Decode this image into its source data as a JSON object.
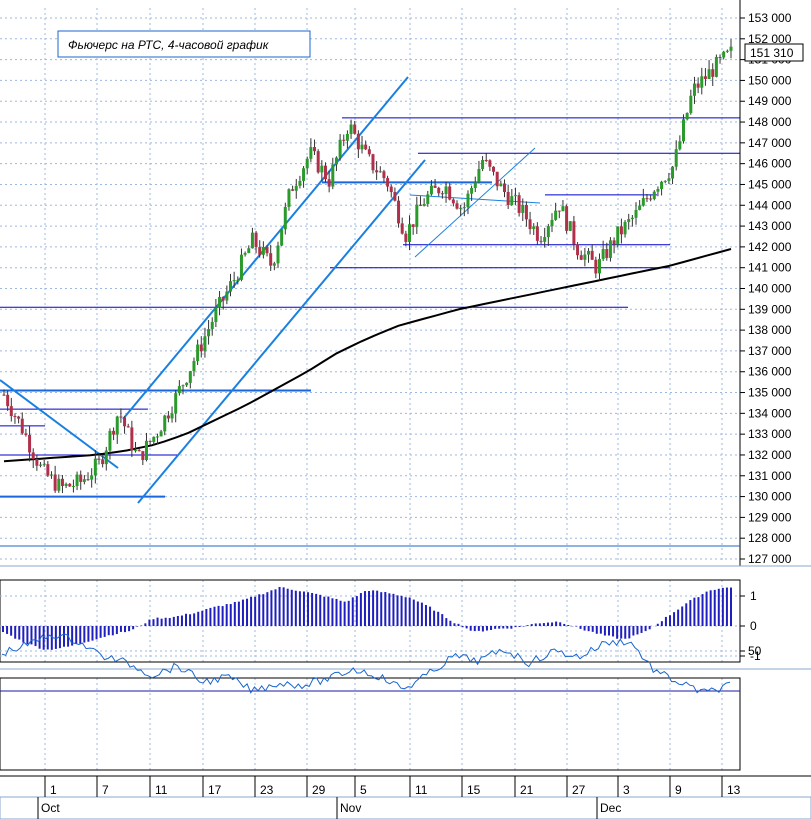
{
  "chart_data": [
    {
      "type": "candlestick",
      "title": "Фьючерс на РТС, 4-часовой график",
      "last_price_label": "151 310",
      "ylim": [
        127000,
        153500
      ],
      "y_ticks": [
        "153 000",
        "152 000",
        "151 000",
        "150 000",
        "149 000",
        "148 000",
        "147 000",
        "146 000",
        "145 000",
        "144 000",
        "143 000",
        "142 000",
        "141 000",
        "140 000",
        "139 000",
        "138 000",
        "137 000",
        "136 000",
        "135 000",
        "134 000",
        "133 000",
        "132 000",
        "131 000",
        "130 000",
        "129 000",
        "128 000",
        "127 000"
      ],
      "y_tick_values": [
        153000,
        152000,
        151000,
        150000,
        149000,
        148000,
        147000,
        146000,
        145000,
        144000,
        143000,
        142000,
        141000,
        140000,
        139000,
        138000,
        137000,
        136000,
        135000,
        134000,
        133000,
        132000,
        131000,
        130000,
        129000,
        128000,
        127000
      ],
      "x_day_labels": [
        "1",
        "7",
        "11",
        "17",
        "23",
        "29",
        "5",
        "11",
        "15",
        "21",
        "27",
        "3",
        "9",
        "13"
      ],
      "x_month_labels": [
        "Oct",
        "Nov",
        "Dec"
      ],
      "key_closes": [
        134900,
        133200,
        131200,
        130400,
        130700,
        131600,
        134100,
        131800,
        133100,
        134800,
        136700,
        138700,
        140400,
        142300,
        141100,
        144800,
        146500,
        145200,
        147900,
        146200,
        145200,
        142600,
        144300,
        145000,
        143800,
        146200,
        144800,
        143800,
        142500,
        144100,
        141900,
        141000,
        142500,
        143500,
        144900,
        145900,
        149500,
        150500,
        151310
      ],
      "moving_average": [
        131700,
        131800,
        131900,
        132000,
        132200,
        132500,
        133000,
        133700,
        134400,
        135200,
        136000,
        136900,
        137600,
        138200,
        138600,
        139000,
        139300,
        139600,
        139900,
        140200,
        140500,
        140800,
        141100,
        141500,
        141900
      ],
      "horizontal_levels": [
        148200,
        146500,
        145100,
        144500,
        142100,
        141000,
        139100,
        135100,
        134200,
        133400,
        132000,
        130000
      ],
      "grid": true
    },
    {
      "type": "bar",
      "name": "oscillator",
      "y_ticks": [
        "1",
        "0",
        "-1"
      ],
      "y_tick_values": [
        1,
        0,
        -1
      ],
      "ylim": [
        -1.1,
        1.4
      ],
      "key_values": [
        -0.2,
        -0.55,
        -0.8,
        -0.7,
        -0.5,
        -0.3,
        -0.15,
        0.25,
        0.3,
        0.45,
        0.65,
        0.8,
        1.05,
        1.3,
        1.15,
        1.0,
        0.8,
        1.2,
        1.1,
        0.95,
        0.6,
        0.15,
        -0.2,
        -0.1,
        -0.05,
        0.1,
        0.15,
        -0.1,
        -0.3,
        -0.45,
        -0.2,
        0.3,
        0.8,
        1.2,
        1.3
      ]
    },
    {
      "type": "line",
      "name": "index",
      "y_ticks": [
        "50"
      ],
      "y_tick_values": [
        50
      ],
      "ylim": [
        20,
        98
      ],
      "level": 90,
      "key_values": [
        52,
        44,
        33,
        40,
        55,
        62,
        74,
        65,
        81,
        76,
        90,
        82,
        84,
        78,
        68,
        75,
        88,
        73,
        55,
        60,
        48,
        62,
        50,
        56,
        42,
        40,
        70,
        82,
        92,
        84
      ]
    }
  ]
}
